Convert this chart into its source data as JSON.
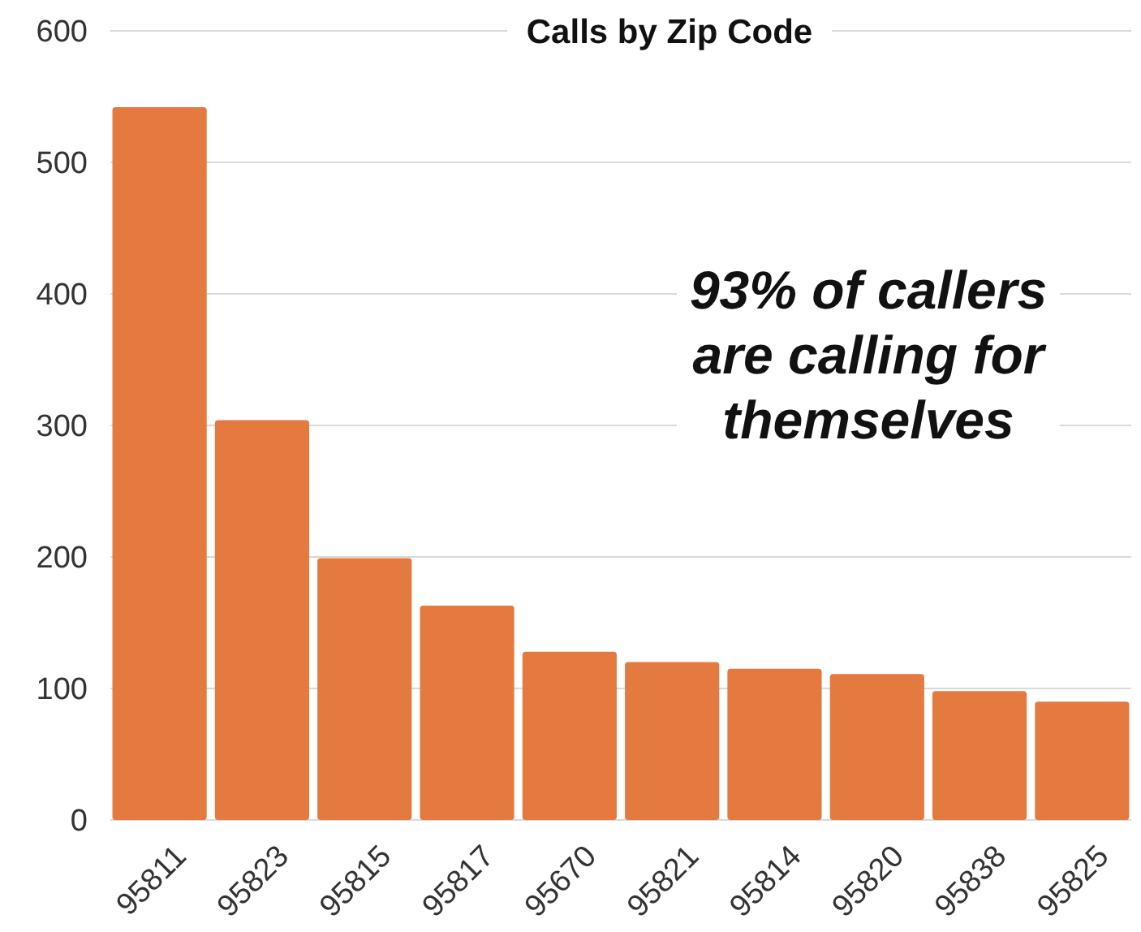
{
  "chart_data": {
    "type": "bar",
    "title": "Calls by Zip Code",
    "categories": [
      "95811",
      "95823",
      "95815",
      "95817",
      "95670",
      "95821",
      "95814",
      "95820",
      "95838",
      "95825"
    ],
    "values": [
      542,
      304,
      199,
      163,
      128,
      120,
      115,
      111,
      98,
      90
    ],
    "color": "#e57a40",
    "ylim": [
      0,
      600
    ],
    "yticks": [
      0,
      100,
      200,
      300,
      400,
      500,
      600
    ],
    "grid": "y",
    "annotations": [
      "93% of callers are calling for themselves"
    ]
  }
}
